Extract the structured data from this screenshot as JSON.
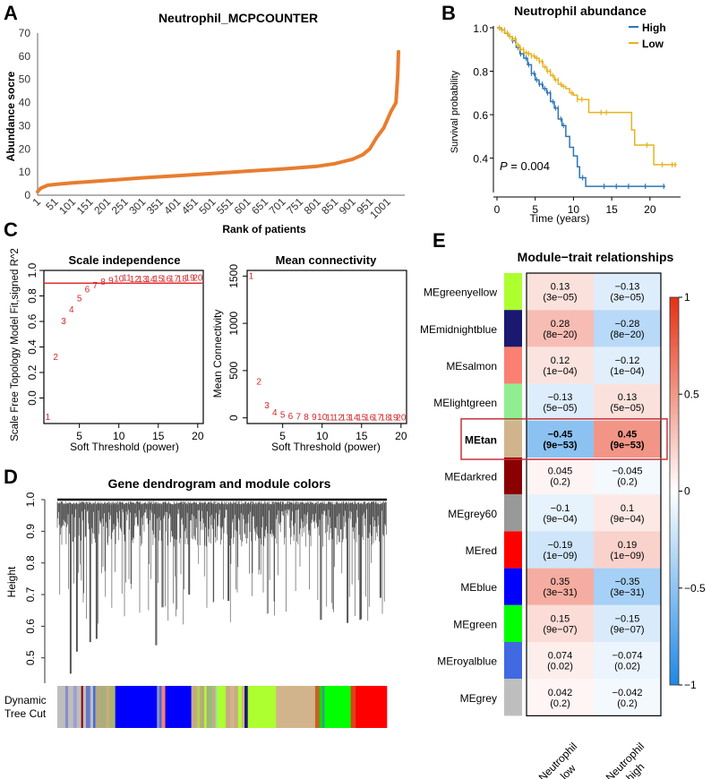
{
  "panels": {
    "A": "A",
    "B": "B",
    "C": "C",
    "D": "D",
    "E": "E"
  },
  "chart_data": [
    {
      "id": "A",
      "type": "line",
      "title": "Neutrophil_MCPCOUNTER",
      "xlabel": "Rank of patients",
      "ylabel": "Abundance socre",
      "ylim": [
        0,
        70
      ],
      "yticks": [
        "0",
        "10",
        "20",
        "30",
        "40",
        "50",
        "60",
        "70"
      ],
      "xlim": [
        1,
        1050
      ],
      "xticks": [
        "1",
        "51",
        "101",
        "151",
        "201",
        "251",
        "301",
        "351",
        "401",
        "451",
        "501",
        "551",
        "601",
        "651",
        "701",
        "751",
        "801",
        "851",
        "901",
        "951",
        "1001"
      ],
      "color": "#E87D2F",
      "x": [
        1,
        10,
        30,
        60,
        100,
        200,
        300,
        400,
        500,
        600,
        700,
        800,
        850,
        900,
        930,
        950,
        970,
        990,
        1010,
        1025,
        1030,
        1032
      ],
      "y": [
        1.5,
        3,
        4.3,
        4.8,
        5.3,
        6.4,
        7.5,
        8.4,
        9.4,
        10.4,
        11.3,
        12.5,
        13.6,
        15.5,
        17.5,
        20,
        25,
        29,
        36,
        40,
        52,
        62
      ]
    },
    {
      "id": "B",
      "type": "line",
      "title": "Neutrophil abundance",
      "xlabel": "Time (years)",
      "ylabel": "Survival probability",
      "xlim": [
        0,
        24
      ],
      "ylim": [
        0.25,
        1.0
      ],
      "xticks": [
        "0",
        "5",
        "10",
        "15",
        "20"
      ],
      "yticks": [
        "0.4",
        "0.6",
        "0.8",
        "1.0"
      ],
      "annotation": "P = 0.004",
      "annotation_p": "P",
      "annotation_rest": " = 0.004",
      "legend": "top-right",
      "series": [
        {
          "name": "High",
          "color": "#2E75B6",
          "x": [
            0,
            0.5,
            1,
            1.5,
            2,
            2.5,
            3,
            3.5,
            4,
            4.5,
            5,
            5.5,
            6,
            6.5,
            7,
            7.5,
            8,
            8.5,
            9,
            9.5,
            10,
            10.5,
            10.8,
            11.6,
            12,
            14,
            16,
            18,
            20,
            22
          ],
          "y": [
            1.0,
            0.99,
            0.975,
            0.96,
            0.94,
            0.91,
            0.88,
            0.86,
            0.83,
            0.79,
            0.76,
            0.74,
            0.72,
            0.7,
            0.66,
            0.63,
            0.58,
            0.55,
            0.5,
            0.45,
            0.41,
            0.36,
            0.31,
            0.27,
            0.27,
            0.27,
            0.27,
            0.27,
            0.27,
            0.27
          ],
          "censor_x": [
            11.2,
            14,
            15.6,
            17.2,
            19.4,
            21.8
          ]
        },
        {
          "name": "Low",
          "color": "#E6B41E",
          "x": [
            0,
            0.5,
            1,
            1.5,
            2,
            2.5,
            3,
            3.5,
            4,
            4.5,
            5,
            5.5,
            6,
            6.5,
            7,
            7.5,
            8,
            8.5,
            9,
            9.5,
            10,
            10.5,
            11,
            12,
            14,
            16,
            17.6,
            18,
            20,
            20.5,
            22,
            23.5
          ],
          "y": [
            1.0,
            0.99,
            0.975,
            0.96,
            0.95,
            0.92,
            0.9,
            0.885,
            0.88,
            0.87,
            0.86,
            0.845,
            0.82,
            0.8,
            0.78,
            0.76,
            0.74,
            0.73,
            0.72,
            0.7,
            0.69,
            0.67,
            0.67,
            0.61,
            0.61,
            0.61,
            0.53,
            0.46,
            0.46,
            0.37,
            0.37,
            0.37
          ],
          "censor_x": [
            9.8,
            10.5,
            11.1,
            13.6,
            14.3,
            19.6,
            21.6,
            22.9,
            23.3
          ]
        }
      ]
    },
    {
      "id": "C1",
      "type": "scatter",
      "title": "Scale independence",
      "xlabel": "Soft Threshold (power)",
      "ylabel": "Scale Free Topology Model Fit,signed R^2",
      "xlim": [
        0.5,
        20.7
      ],
      "ylim": [
        -0.2,
        1.0
      ],
      "xticks": [
        "5",
        "10",
        "15",
        "20"
      ],
      "yticks": [
        "0.0",
        "0.2",
        "0.4",
        "0.6",
        "0.8",
        "1.0"
      ],
      "hline": 0.9,
      "color": "#D62728",
      "x": [
        1,
        2,
        3,
        4,
        5,
        6,
        7,
        8,
        9,
        10,
        11,
        12,
        13,
        14,
        15,
        16,
        17,
        18,
        19,
        20
      ],
      "y": [
        -0.15,
        0.32,
        0.6,
        0.69,
        0.78,
        0.85,
        0.88,
        0.91,
        0.92,
        0.935,
        0.94,
        0.93,
        0.93,
        0.93,
        0.935,
        0.935,
        0.935,
        0.935,
        0.94,
        0.94
      ],
      "labels": [
        "1",
        "2",
        "3",
        "4",
        "5",
        "6",
        "7",
        "8",
        "9",
        "10",
        "11",
        "12",
        "13",
        "14",
        "15",
        "16",
        "17",
        "18",
        "19",
        "20"
      ]
    },
    {
      "id": "C2",
      "type": "scatter",
      "title": "Mean connectivity",
      "xlabel": "Soft Threshold (power)",
      "ylabel": "Mean Connectivity",
      "xlim": [
        0.5,
        20.7
      ],
      "ylim": [
        -60,
        1560
      ],
      "xticks": [
        "5",
        "10",
        "15",
        "20"
      ],
      "yticks": [
        "0",
        "500",
        "1000",
        "1500"
      ],
      "color": "#D62728",
      "x": [
        1,
        2,
        3,
        4,
        5,
        6,
        7,
        8,
        9,
        10,
        11,
        12,
        13,
        14,
        15,
        16,
        17,
        18,
        19,
        20
      ],
      "y": [
        1500,
        380,
        130,
        55,
        28,
        16,
        10,
        7,
        5,
        4,
        3,
        3,
        2,
        2,
        2,
        2,
        2,
        2,
        2,
        2
      ],
      "labels": [
        "1",
        "2",
        "3",
        "4",
        "5",
        "6",
        "7",
        "8",
        "9",
        "10",
        "11",
        "12",
        "13",
        "14",
        "15",
        "16",
        "17",
        "18",
        "19",
        "20"
      ]
    },
    {
      "id": "D",
      "type": "dendrogram",
      "title": "Gene dendrogram and module colors",
      "ylabel": "Height",
      "ylim": [
        0.42,
        1.0
      ],
      "yticks": [
        "0.5",
        "0.6",
        "0.7",
        "0.8",
        "0.9",
        "1.0"
      ],
      "colorbar_label_1": "Dynamic",
      "colorbar_label_2": "Tree Cut",
      "module_segments": [
        {
          "color": "#BEBEBE",
          "w": 2.2
        },
        {
          "color": "#8B8FC8",
          "w": 0.8
        },
        {
          "color": "#BEBEBE",
          "w": 1.4
        },
        {
          "color": "#9FA0CC",
          "w": 1.0
        },
        {
          "color": "#BEBEBE",
          "w": 1.2
        },
        {
          "color": "#8B0000",
          "w": 0.5
        },
        {
          "color": "#BEBEBE",
          "w": 0.8
        },
        {
          "color": "#6A78C8",
          "w": 1.2
        },
        {
          "color": "#BEBEBE",
          "w": 0.8
        },
        {
          "color": "#4169E1",
          "w": 0.6
        },
        {
          "color": "#B8A880",
          "w": 1.3
        },
        {
          "color": "#A8B07A",
          "w": 1.6
        },
        {
          "color": "#C8AA82",
          "w": 1.0
        },
        {
          "color": "#A9B46C",
          "w": 1.6
        },
        {
          "color": "#0000FF",
          "w": 11.5
        },
        {
          "color": "#8B8FC8",
          "w": 0.7
        },
        {
          "color": "#4169E1",
          "w": 0.6
        },
        {
          "color": "#FA8072",
          "w": 1.0
        },
        {
          "color": "#0000FF",
          "w": 7.2
        },
        {
          "color": "#C8AA82",
          "w": 1.6
        },
        {
          "color": "#ADD84A",
          "w": 0.8
        },
        {
          "color": "#B8A880",
          "w": 1.2
        },
        {
          "color": "#ADFF2F",
          "w": 0.6
        },
        {
          "color": "#A8B07A",
          "w": 1.0
        },
        {
          "color": "#7CC87C",
          "w": 0.5
        },
        {
          "color": "#C8AA82",
          "w": 1.0
        },
        {
          "color": "#90EE90",
          "w": 0.6
        },
        {
          "color": "#ADFF2F",
          "w": 2.2
        },
        {
          "color": "#C8AA82",
          "w": 1.2
        },
        {
          "color": "#D2B48C",
          "w": 1.2
        },
        {
          "color": "#C8AA82",
          "w": 1.0
        },
        {
          "color": "#ADFF2F",
          "w": 1.0
        },
        {
          "color": "#D2B48C",
          "w": 0.8
        },
        {
          "color": "#191970",
          "w": 0.9
        },
        {
          "color": "#ADFF2F",
          "w": 7.8
        },
        {
          "color": "#D2B48C",
          "w": 10.8
        },
        {
          "color": "#C8602A",
          "w": 1.2
        },
        {
          "color": "#00E000",
          "w": 0.8
        },
        {
          "color": "#4F8F8F",
          "w": 0.6
        },
        {
          "color": "#00FF00",
          "w": 7.2
        },
        {
          "color": "#E0401A",
          "w": 1.4
        },
        {
          "color": "#FF0000",
          "w": 8.6
        }
      ]
    },
    {
      "id": "E",
      "type": "heatmap",
      "title": "Module−trait relationships",
      "columns": [
        "Neutrophil low",
        "Neutrophil high"
      ],
      "column_lines": [
        [
          "Neutrophil",
          "low"
        ],
        [
          "Neutrophil",
          "high"
        ]
      ],
      "colorbar": {
        "min": -1,
        "max": 1,
        "ticks": [
          "1",
          "0.5",
          "0",
          "−0.5",
          "−1"
        ],
        "low_color": "#1E88E5",
        "mid_color": "#FFFFFF",
        "high_color": "#E53012"
      },
      "highlight_row": "MEtan",
      "highlight_color": "#C8323C",
      "rows": [
        {
          "name": "MEgreenyellow",
          "color": "#ADFF2F",
          "values": [
            0.13,
            -0.13
          ],
          "labels": [
            "0.13",
            "−0.13"
          ],
          "p": [
            "(3e−05)",
            "(3e−05)"
          ]
        },
        {
          "name": "MEmidnightblue",
          "color": "#191970",
          "values": [
            0.28,
            -0.28
          ],
          "labels": [
            "0.28",
            "−0.28"
          ],
          "p": [
            "(8e−20)",
            "(8e−20)"
          ]
        },
        {
          "name": "MEsalmon",
          "color": "#FA8072",
          "values": [
            0.12,
            -0.12
          ],
          "labels": [
            "0.12",
            "−0.12"
          ],
          "p": [
            "(1e−04)",
            "(1e−04)"
          ]
        },
        {
          "name": "MElightgreen",
          "color": "#90EE90",
          "values": [
            -0.13,
            0.13
          ],
          "labels": [
            "−0.13",
            "0.13"
          ],
          "p": [
            "(5e−05)",
            "(5e−05)"
          ]
        },
        {
          "name": "MEtan",
          "color": "#D2B48C",
          "values": [
            -0.45,
            0.45
          ],
          "labels": [
            "−0.45",
            "0.45"
          ],
          "p": [
            "(9e−53)",
            "(9e−53)"
          ]
        },
        {
          "name": "MEdarkred",
          "color": "#8B0000",
          "values": [
            0.045,
            -0.045
          ],
          "labels": [
            "0.045",
            "−0.045"
          ],
          "p": [
            "(0.2)",
            "(0.2)"
          ]
        },
        {
          "name": "MEgrey60",
          "color": "#999999",
          "values": [
            -0.1,
            0.1
          ],
          "labels": [
            "−0.1",
            "0.1"
          ],
          "p": [
            "(9e−04)",
            "(9e−04)"
          ]
        },
        {
          "name": "MEred",
          "color": "#FF0000",
          "values": [
            -0.19,
            0.19
          ],
          "labels": [
            "−0.19",
            "0.19"
          ],
          "p": [
            "(1e−09)",
            "(1e−09)"
          ]
        },
        {
          "name": "MEblue",
          "color": "#0000FF",
          "values": [
            0.35,
            -0.35
          ],
          "labels": [
            "0.35",
            "−0.35"
          ],
          "p": [
            "(3e−31)",
            "(3e−31)"
          ]
        },
        {
          "name": "MEgreen",
          "color": "#00FF00",
          "values": [
            0.15,
            -0.15
          ],
          "labels": [
            "0.15",
            "−0.15"
          ],
          "p": [
            "(9e−07)",
            "(9e−07)"
          ]
        },
        {
          "name": "MEroyalblue",
          "color": "#4169E1",
          "values": [
            0.074,
            -0.074
          ],
          "labels": [
            "0.074",
            "−0.074"
          ],
          "p": [
            "(0.02)",
            "(0.02)"
          ]
        },
        {
          "name": "MEgrey",
          "color": "#BEBEBE",
          "values": [
            0.042,
            -0.042
          ],
          "labels": [
            "0.042",
            "−0.042"
          ],
          "p": [
            "(0.2)",
            "(0.2)"
          ]
        }
      ]
    }
  ]
}
